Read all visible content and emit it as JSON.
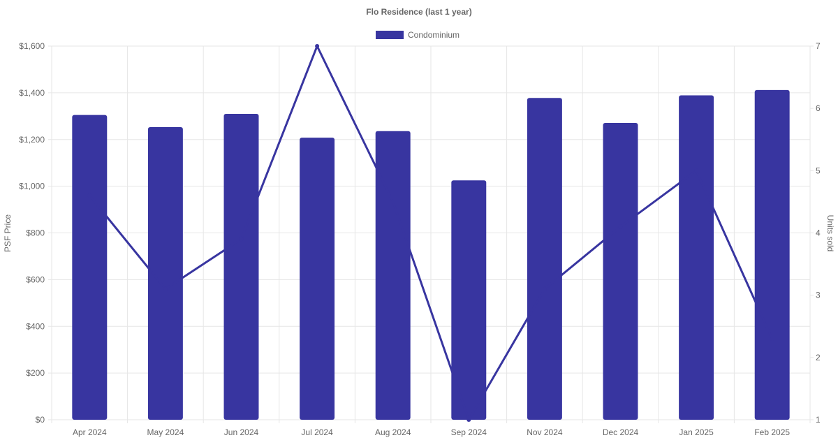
{
  "chart_data": {
    "type": "bar",
    "title": "Flo Residence (last 1 year)",
    "categories": [
      "Apr 2024",
      "May 2024",
      "Jun 2024",
      "Jul 2024",
      "Aug 2024",
      "Sep 2024",
      "Nov 2024",
      "Dec 2024",
      "Jan 2025",
      "Feb 2025"
    ],
    "series": [
      {
        "name": "Condominium",
        "kind": "bar",
        "axis": "left",
        "color": "#3835a0",
        "values": [
          1305,
          1253,
          1310,
          1208,
          1236,
          1025,
          1378,
          1271,
          1389,
          1412
        ]
      },
      {
        "kind": "line",
        "axis": "right",
        "color": "#3835a0",
        "values": [
          4.6,
          3.1,
          3.9,
          7,
          4.5,
          1,
          3.1,
          4.1,
          5,
          2.3
        ]
      }
    ],
    "ylabel": "PSF Price",
    "y2label": "Units sold",
    "ylim": [
      0,
      1600
    ],
    "y2lim": [
      1,
      7
    ],
    "yticks": [
      "$0",
      "$200",
      "$400",
      "$600",
      "$800",
      "$1,000",
      "$1,200",
      "$1,400",
      "$1,600"
    ],
    "y2ticks": [
      "1",
      "2",
      "3",
      "4",
      "5",
      "6",
      "7"
    ],
    "legend": "top",
    "grid": true
  }
}
